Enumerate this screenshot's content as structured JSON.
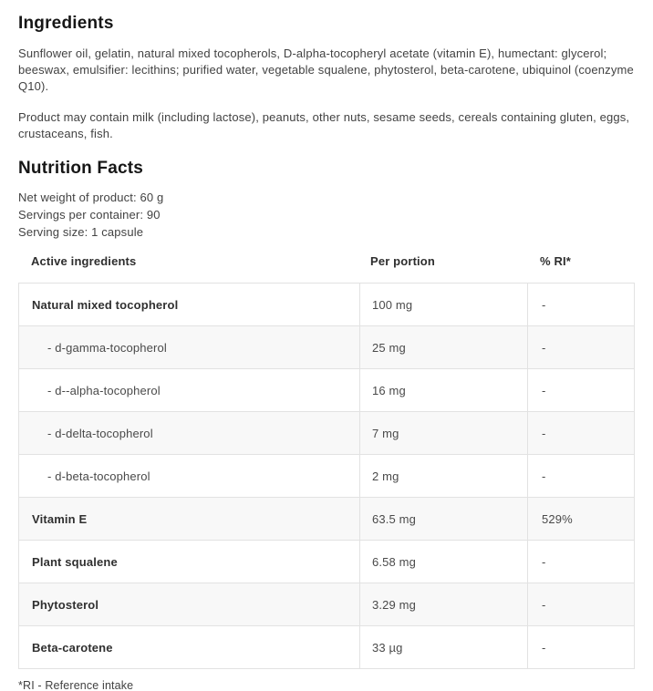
{
  "ingredients": {
    "heading": "Ingredients",
    "composition": "Sunflower oil, gelatin, natural mixed tocopherols, D-alpha-tocopheryl acetate (vitamin E), humectant: glycerol; beeswax, emulsifier: lecithins; purified water, vegetable squalene, phytosterol, beta-carotene, ubiquinol (coenzyme Q10).",
    "allergens": "Product may contain milk (including lactose), peanuts, other nuts, sesame seeds, cereals containing gluten, eggs, crustaceans, fish."
  },
  "nutrition": {
    "heading": "Nutrition Facts",
    "net_weight": "Net weight of product: 60 g",
    "servings_per_container": "Servings per container: 90",
    "serving_size": "Serving size: 1 capsule",
    "footnote": "*RI - Reference intake",
    "table": {
      "columns": [
        "Active ingredients",
        "Per portion",
        "% RI*"
      ],
      "rows": [
        {
          "name": "Natural mixed tocopherol",
          "per_portion": "100 mg",
          "ri": "-",
          "emphasis": true,
          "indent": false
        },
        {
          "name": "- d-gamma-tocopherol",
          "per_portion": "25 mg",
          "ri": "-",
          "emphasis": false,
          "indent": true
        },
        {
          "name": "- d--alpha-tocopherol",
          "per_portion": "16 mg",
          "ri": "-",
          "emphasis": false,
          "indent": true
        },
        {
          "name": "- d-delta-tocopherol",
          "per_portion": "7 mg",
          "ri": "-",
          "emphasis": false,
          "indent": true
        },
        {
          "name": "- d-beta-tocopherol",
          "per_portion": "2 mg",
          "ri": "-",
          "emphasis": false,
          "indent": true
        },
        {
          "name": "Vitamin E",
          "per_portion": "63.5 mg",
          "ri": "529%",
          "emphasis": true,
          "indent": false
        },
        {
          "name": "Plant squalene",
          "per_portion": "6.58 mg",
          "ri": "-",
          "emphasis": true,
          "indent": false
        },
        {
          "name": "Phytosterol",
          "per_portion": "3.29 mg",
          "ri": "-",
          "emphasis": true,
          "indent": false
        },
        {
          "name": "Beta-carotene",
          "per_portion": "33 µg",
          "ri": "-",
          "emphasis": true,
          "indent": false
        }
      ]
    }
  },
  "colors": {
    "heading_text": "#161616",
    "body_text": "#424242",
    "table_border": "#e2e2e2",
    "row_alt_background": "#f8f8f8"
  }
}
